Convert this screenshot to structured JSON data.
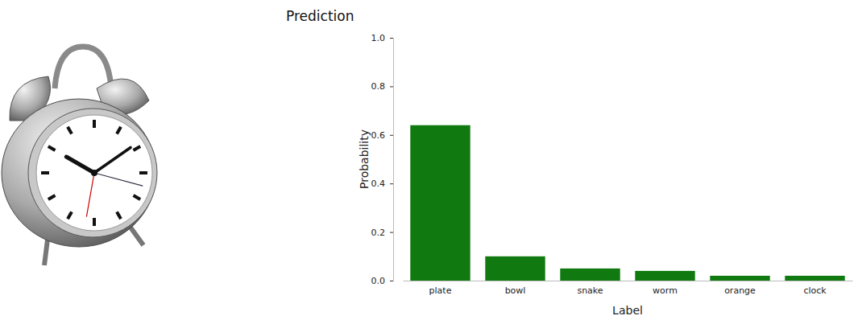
{
  "chart_data": {
    "type": "bar",
    "title": "Prediction",
    "x_label": "Label",
    "y_label": "Probability",
    "categories": [
      "plate",
      "bowl",
      "snake",
      "worm",
      "orange",
      "clock"
    ],
    "values": [
      0.64,
      0.1,
      0.05,
      0.04,
      0.02,
      0.02
    ],
    "color": "#107a10",
    "ylim": [
      0,
      1
    ],
    "yticks": [
      {
        "value": 0,
        "label": "0.0"
      },
      {
        "value": 0.2,
        "label": "0.2"
      },
      {
        "value": 0.4,
        "label": "0.4"
      },
      {
        "value": 0.6,
        "label": "0.6"
      },
      {
        "value": 0.8,
        "label": "0.8"
      },
      {
        "value": 1,
        "label": "1.0"
      }
    ],
    "grid": false
  }
}
